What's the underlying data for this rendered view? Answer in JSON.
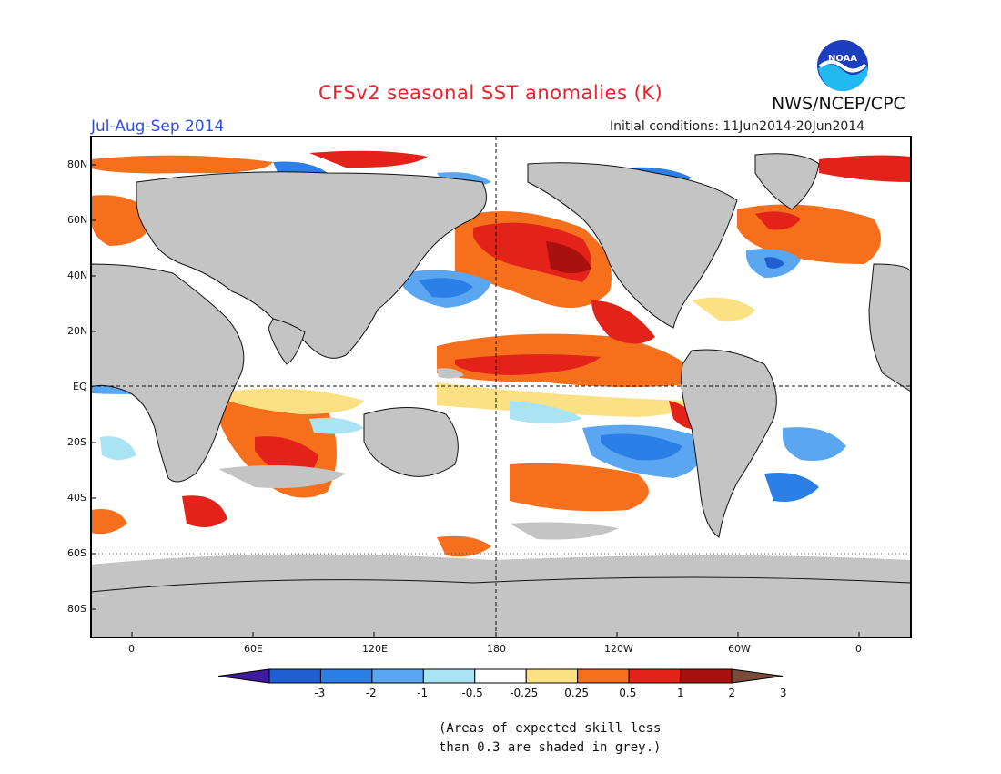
{
  "header": {
    "title": "CFSv2 seasonal SST anomalies (K)",
    "period": "Jul-Aug-Sep 2014",
    "initial_conditions": "Initial conditions: 11Jun2014-20Jun2014",
    "agency": "NWS/NCEP/CPC",
    "logo_text": "NOAA"
  },
  "axes": {
    "lat_labels": [
      "80N",
      "60N",
      "40N",
      "20N",
      "EQ",
      "20S",
      "40S",
      "60S",
      "80S"
    ],
    "lon_labels": [
      "0",
      "60E",
      "120E",
      "180",
      "120W",
      "60W",
      "0"
    ]
  },
  "colorbar": {
    "labels": [
      "-3",
      "-2",
      "-1",
      "-0.5",
      "-0.25",
      "0.25",
      "0.5",
      "1",
      "2",
      "3"
    ],
    "colors": [
      "#3d1a9e",
      "#1f5fd1",
      "#2b7fe6",
      "#5aa6f0",
      "#a9e3f4",
      "#ffffff",
      "#fbe184",
      "#f56f1c",
      "#e3221a",
      "#a8110e",
      "#7a4a3a"
    ]
  },
  "land_color": "#c4c4c4",
  "note": [
    "(Areas of expected skill less",
    "than 0.3 are shaded in grey.)"
  ]
}
